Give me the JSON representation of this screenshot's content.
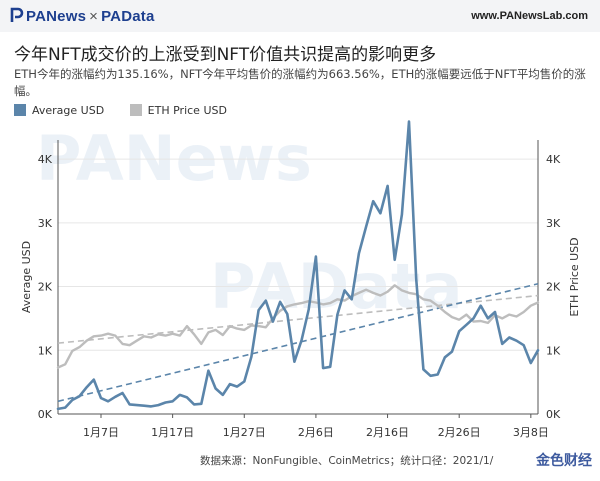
{
  "header": {
    "brand_pa": "PANews",
    "brand_x": "×",
    "brand_data": "PAData",
    "site": "www.PANewsLab.com"
  },
  "title": "今年NFT成交价的上涨受到NFT价值共识提高的影响更多",
  "subtitle": "ETH今年的涨幅约为135.16%，NFT今年平均售价的涨幅约为663.56%，ETH的涨幅要远低于NFT平均售价的涨幅。",
  "colors": {
    "average": "#5b85aa",
    "eth": "#bdbdbd",
    "grid": "#e6e6e6",
    "axis": "#555555"
  },
  "footer": "数据来源：NonFungible、CoinMetrics；统计口径：2021/1/",
  "footer_watermark": "金色财经",
  "watermark_text_1": "PANews",
  "watermark_text_2": "PAData",
  "chart_data": {
    "type": "line",
    "xlabel": "",
    "ylabel_left": "Average USD",
    "ylabel_right": "ETH Price USD",
    "ylim_left": [
      0,
      4300
    ],
    "ylim_right": [
      0,
      4300
    ],
    "x_ticks": [
      "1月7日",
      "1月17日",
      "1月27日",
      "2月6日",
      "2月16日",
      "2月26日",
      "3月8日"
    ],
    "x_tick_days": [
      7,
      17,
      27,
      37,
      47,
      57,
      67
    ],
    "y_ticks_left": [
      "0K",
      "1K",
      "2K",
      "3K",
      "4K"
    ],
    "y_ticks_right": [
      "0K",
      "1K",
      "2K",
      "3K",
      "4K"
    ],
    "y_tick_values": [
      0,
      1000,
      2000,
      3000,
      4000
    ],
    "legend": [
      "Average USD",
      "ETH Price USD"
    ],
    "legend_position": "top-left",
    "trendlines": true,
    "series": [
      {
        "name": "Average USD",
        "color": "#5b85aa",
        "axis": "left",
        "x": [
          1,
          2,
          3,
          4,
          5,
          6,
          7,
          8,
          9,
          10,
          11,
          12,
          13,
          14,
          15,
          16,
          17,
          18,
          19,
          20,
          21,
          22,
          23,
          24,
          25,
          26,
          27,
          28,
          29,
          30,
          31,
          32,
          33,
          34,
          35,
          36,
          37,
          38,
          39,
          40,
          41,
          42,
          43,
          44,
          45,
          46,
          47,
          48,
          49,
          50,
          51,
          52,
          53,
          54,
          55,
          56,
          57,
          58,
          59,
          60,
          61,
          62,
          63,
          64,
          65,
          66,
          67,
          68
        ],
        "y": [
          80,
          100,
          220,
          280,
          420,
          540,
          250,
          200,
          270,
          330,
          150,
          140,
          130,
          120,
          140,
          180,
          200,
          300,
          260,
          150,
          160,
          680,
          400,
          300,
          470,
          430,
          510,
          900,
          1630,
          1780,
          1450,
          1760,
          1570,
          820,
          1160,
          1640,
          2470,
          720,
          740,
          1560,
          1940,
          1800,
          2520,
          2940,
          3340,
          3150,
          3580,
          2420,
          3130,
          4590,
          2120,
          700,
          600,
          620,
          890,
          980,
          1300,
          1400,
          1500,
          1700,
          1500,
          1600,
          1100,
          1200,
          1150,
          1080,
          800,
          1000
        ]
      },
      {
        "name": "ETH Price USD",
        "color": "#bdbdbd",
        "axis": "right",
        "x": [
          1,
          2,
          3,
          4,
          5,
          6,
          7,
          8,
          9,
          10,
          11,
          12,
          13,
          14,
          15,
          16,
          17,
          18,
          19,
          20,
          21,
          22,
          23,
          24,
          25,
          26,
          27,
          28,
          29,
          30,
          31,
          32,
          33,
          34,
          35,
          36,
          37,
          38,
          39,
          40,
          41,
          42,
          43,
          44,
          45,
          46,
          47,
          48,
          49,
          50,
          51,
          52,
          53,
          54,
          55,
          56,
          57,
          58,
          59,
          60,
          61,
          62,
          63,
          64,
          65,
          66,
          67,
          68
        ],
        "y": [
          730,
          780,
          990,
          1050,
          1150,
          1220,
          1230,
          1260,
          1230,
          1100,
          1080,
          1150,
          1220,
          1200,
          1250,
          1230,
          1260,
          1230,
          1380,
          1250,
          1100,
          1280,
          1320,
          1240,
          1380,
          1340,
          1320,
          1390,
          1380,
          1360,
          1500,
          1620,
          1690,
          1720,
          1740,
          1770,
          1750,
          1720,
          1740,
          1800,
          1780,
          1850,
          1900,
          1950,
          1900,
          1860,
          1920,
          2020,
          1940,
          1900,
          1880,
          1800,
          1780,
          1700,
          1600,
          1520,
          1480,
          1560,
          1450,
          1460,
          1430,
          1550,
          1500,
          1560,
          1530,
          1600,
          1700,
          1750
        ]
      }
    ]
  }
}
